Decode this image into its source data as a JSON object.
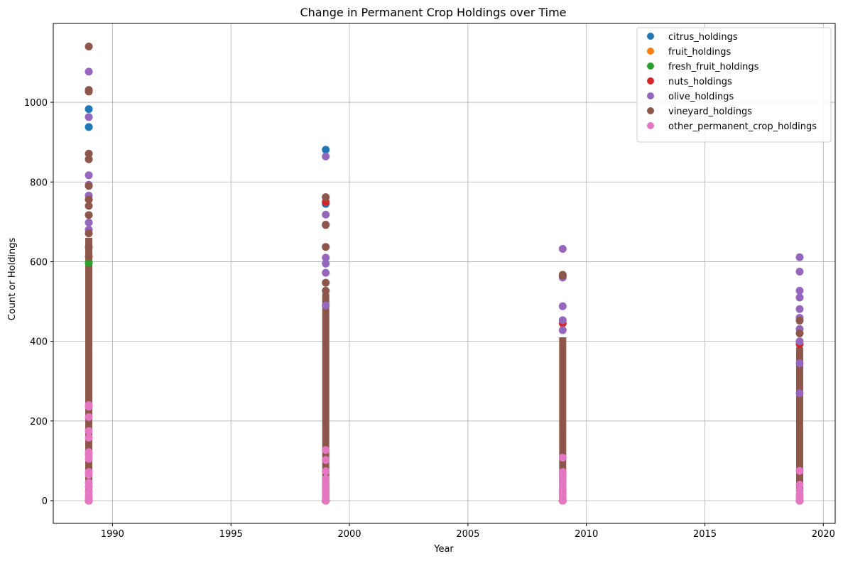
{
  "chart_data": {
    "type": "scatter",
    "title": "Change in Permanent Crop Holdings over Time",
    "xlabel": "Year",
    "ylabel": "Count or Holdings",
    "xlim": [
      1987.5,
      2020.5
    ],
    "ylim": [
      -57,
      1198
    ],
    "x_ticks": [
      1990,
      1995,
      2000,
      2005,
      2010,
      2015,
      2020
    ],
    "y_ticks": [
      0,
      200,
      400,
      600,
      800,
      1000
    ],
    "grid": true,
    "legend_position": "top-right",
    "series": [
      {
        "name": "citrus_holdings",
        "color": "#1f77b4",
        "points": [
          [
            1989,
            983
          ],
          [
            1989,
            938
          ],
          [
            1989,
            0
          ],
          [
            1999,
            881
          ],
          [
            1999,
            745
          ],
          [
            1999,
            0
          ],
          [
            2009,
            0
          ],
          [
            2019,
            0
          ]
        ]
      },
      {
        "name": "fruit_holdings",
        "color": "#ff7f0e",
        "points": [
          [
            1989,
            0
          ],
          [
            1999,
            0
          ],
          [
            2009,
            0
          ],
          [
            2019,
            0
          ]
        ]
      },
      {
        "name": "fresh_fruit_holdings",
        "color": "#2ca02c",
        "points": [
          [
            1989,
            597
          ],
          [
            1989,
            0
          ],
          [
            1999,
            0
          ],
          [
            2009,
            0
          ],
          [
            2019,
            0
          ]
        ]
      },
      {
        "name": "nuts_holdings",
        "color": "#d62728",
        "points": [
          [
            1989,
            0
          ],
          [
            1999,
            750
          ],
          [
            1999,
            0
          ],
          [
            2009,
            445
          ],
          [
            2009,
            0
          ],
          [
            2019,
            393
          ],
          [
            2019,
            0
          ]
        ]
      },
      {
        "name": "olive_holdings",
        "color": "#9467bd",
        "points": [
          [
            1989,
            1077
          ],
          [
            1989,
            963
          ],
          [
            1989,
            817
          ],
          [
            1989,
            793
          ],
          [
            1989,
            766
          ],
          [
            1989,
            698
          ],
          [
            1989,
            680
          ],
          [
            1989,
            0
          ],
          [
            1999,
            864
          ],
          [
            1999,
            718
          ],
          [
            1999,
            693
          ],
          [
            1999,
            610
          ],
          [
            1999,
            595
          ],
          [
            1999,
            572
          ],
          [
            1999,
            490
          ],
          [
            1999,
            0
          ],
          [
            2009,
            632
          ],
          [
            2009,
            560
          ],
          [
            2009,
            488
          ],
          [
            2009,
            453
          ],
          [
            2009,
            428
          ],
          [
            2009,
            0
          ],
          [
            2019,
            611
          ],
          [
            2019,
            575
          ],
          [
            2019,
            527
          ],
          [
            2019,
            510
          ],
          [
            2019,
            481
          ],
          [
            2019,
            459
          ],
          [
            2019,
            431
          ],
          [
            2019,
            400
          ],
          [
            2019,
            345
          ],
          [
            2019,
            270
          ],
          [
            2019,
            0
          ]
        ]
      },
      {
        "name": "vineyard_holdings",
        "color": "#8c564b",
        "points": [
          [
            1989,
            1140
          ],
          [
            1989,
            1031
          ],
          [
            1989,
            1027
          ],
          [
            1989,
            871
          ],
          [
            1989,
            857
          ],
          [
            1989,
            790
          ],
          [
            1989,
            756
          ],
          [
            1989,
            740
          ],
          [
            1989,
            717
          ],
          [
            1989,
            671
          ],
          [
            1989,
            637
          ],
          [
            1989,
            613
          ],
          [
            1989,
            0
          ],
          [
            1999,
            762
          ],
          [
            1999,
            692
          ],
          [
            1999,
            637
          ],
          [
            1999,
            547
          ],
          [
            1999,
            527
          ],
          [
            1999,
            0
          ],
          [
            2009,
            567
          ],
          [
            2009,
            565
          ],
          [
            2009,
            0
          ],
          [
            2019,
            452
          ],
          [
            2019,
            420
          ],
          [
            2019,
            0
          ]
        ]
      },
      {
        "name": "other_permanent_crop_holdings",
        "color": "#e377c2",
        "points": [
          [
            1989,
            240
          ],
          [
            1989,
            236
          ],
          [
            1989,
            210
          ],
          [
            1989,
            175
          ],
          [
            1989,
            158
          ],
          [
            1989,
            122
          ],
          [
            1989,
            115
          ],
          [
            1989,
            105
          ],
          [
            1989,
            72
          ],
          [
            1989,
            65
          ],
          [
            1989,
            45
          ],
          [
            1989,
            35
          ],
          [
            1989,
            22
          ],
          [
            1989,
            12
          ],
          [
            1989,
            5
          ],
          [
            1989,
            0
          ],
          [
            1999,
            127
          ],
          [
            1999,
            102
          ],
          [
            1999,
            74
          ],
          [
            1999,
            55
          ],
          [
            1999,
            42
          ],
          [
            1999,
            30
          ],
          [
            1999,
            18
          ],
          [
            1999,
            8
          ],
          [
            1999,
            0
          ],
          [
            2009,
            108
          ],
          [
            2009,
            72
          ],
          [
            2009,
            63
          ],
          [
            2009,
            52
          ],
          [
            2009,
            40
          ],
          [
            2009,
            28
          ],
          [
            2009,
            18
          ],
          [
            2009,
            8
          ],
          [
            2009,
            0
          ],
          [
            2019,
            75
          ],
          [
            2019,
            40
          ],
          [
            2019,
            25
          ],
          [
            2019,
            15
          ],
          [
            2019,
            8
          ],
          [
            2019,
            0
          ]
        ]
      }
    ],
    "column_fill": [
      {
        "x": 1989,
        "from": 0,
        "to": 660,
        "color": "#8c564b"
      },
      {
        "x": 1999,
        "from": 0,
        "to": 520,
        "color": "#8c564b"
      },
      {
        "x": 2009,
        "from": 0,
        "to": 410,
        "color": "#8c564b"
      },
      {
        "x": 2019,
        "from": 0,
        "to": 385,
        "color": "#8c564b"
      }
    ]
  }
}
